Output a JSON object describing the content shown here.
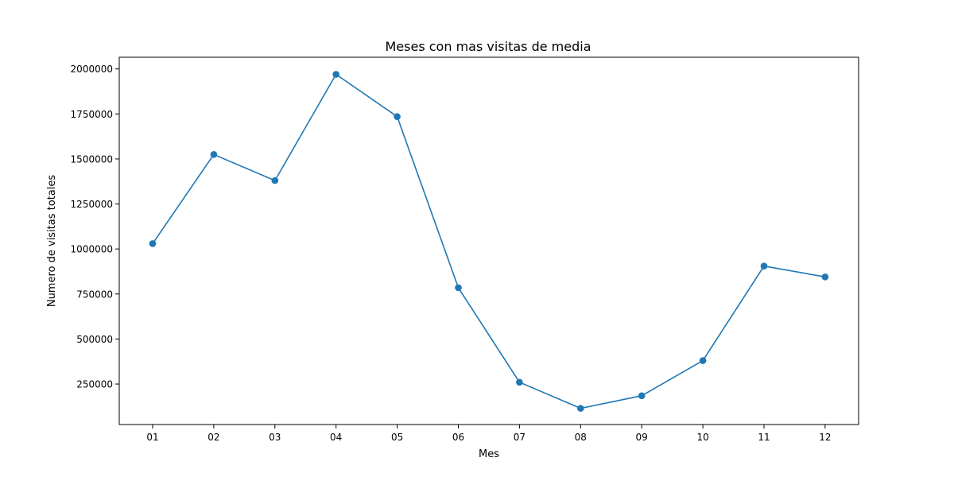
{
  "chart_data": {
    "type": "line",
    "title": "Meses con mas visitas de media",
    "xlabel": "Mes",
    "ylabel": "Numero de visitas totales",
    "categories": [
      "01",
      "02",
      "03",
      "04",
      "05",
      "06",
      "07",
      "08",
      "09",
      "10",
      "11",
      "12"
    ],
    "series": [
      {
        "name": "",
        "values": [
          1030000,
          1525000,
          1380000,
          1970000,
          1735000,
          785000,
          260000,
          115000,
          185000,
          380000,
          905000,
          845000
        ],
        "color": "#1f77b4",
        "marker": "circle"
      }
    ],
    "yticks": [
      250000,
      500000,
      750000,
      1000000,
      1250000,
      1500000,
      1750000,
      2000000
    ],
    "ylim": [
      25000,
      2065000
    ],
    "grid": false
  }
}
